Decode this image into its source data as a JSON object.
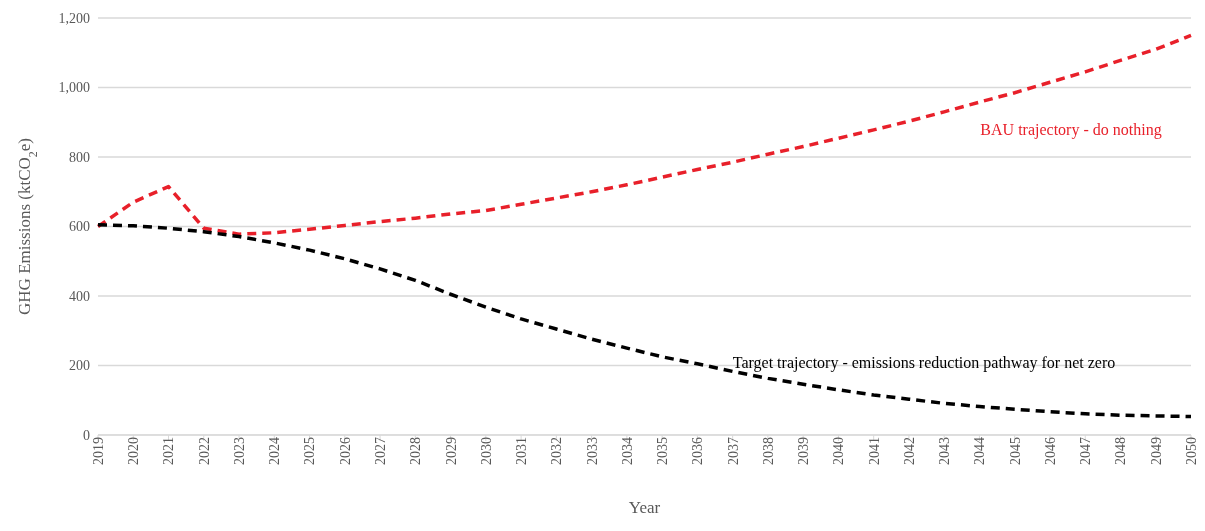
{
  "chart_data": {
    "type": "line",
    "xlabel": "Year",
    "ylabel": "GHG Emissions (ktCO$_{2}$e)",
    "categories": [
      "2019",
      "2020",
      "2021",
      "2022",
      "2023",
      "2024",
      "2025",
      "2026",
      "2027",
      "2028",
      "2029",
      "2030",
      "2031",
      "2032",
      "2033",
      "2034",
      "2035",
      "2036",
      "2037",
      "2038",
      "2039",
      "2040",
      "2041",
      "2042",
      "2043",
      "2044",
      "2045",
      "2046",
      "2047",
      "2048",
      "2049",
      "2050"
    ],
    "series": [
      {
        "color": "#e8202a",
        "values": [
          600,
          670,
          715,
          595,
          578,
          582,
          592,
          603,
          614,
          624,
          636,
          646,
          664,
          682,
          700,
          720,
          742,
          764,
          785,
          808,
          830,
          854,
          878,
          903,
          930,
          958,
          985,
          1015,
          1045,
          1078,
          1110,
          1150
        ]
      },
      {
        "color": "#000000",
        "values": [
          605,
          602,
          595,
          585,
          571,
          553,
          532,
          507,
          478,
          445,
          405,
          368,
          334,
          305,
          276,
          250,
          225,
          205,
          183,
          163,
          146,
          130,
          115,
          103,
          91,
          82,
          74,
          67,
          61,
          57,
          55,
          53
        ]
      }
    ],
    "annotations": [
      "BAU trajectory - do nothing",
      "Target trajectory - emissions reduction pathway for net zero"
    ],
    "ylim": [
      0,
      1200
    ],
    "yticks": [
      0,
      200,
      400,
      600,
      800,
      {
        "value": 1000,
        "label": "1,000"
      },
      {
        "value": 1200,
        "label": "1,200"
      }
    ],
    "grid": "y",
    "legend": false,
    "marker": "none",
    "line_style": "dashed"
  }
}
